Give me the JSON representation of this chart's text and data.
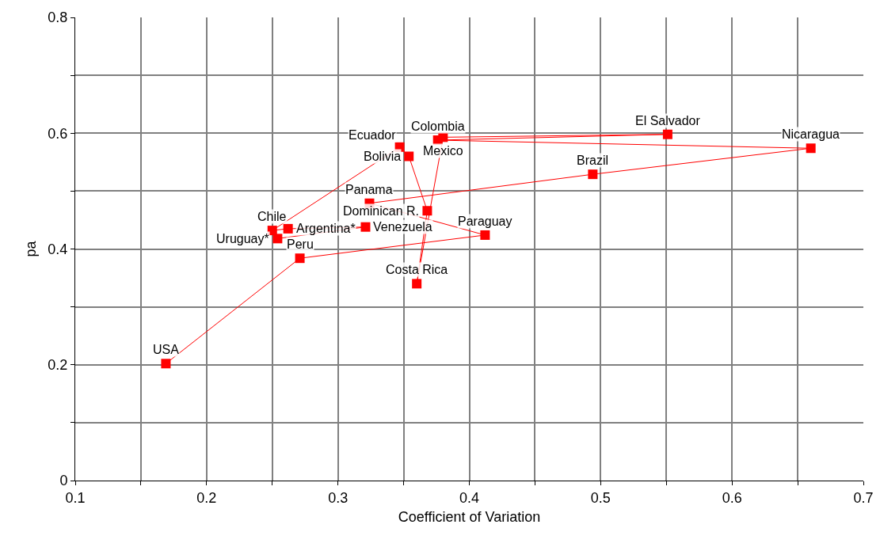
{
  "chart_data": {
    "type": "line",
    "xlabel": "Coefficient of Variation",
    "ylabel": "pa",
    "x": [
      0.169,
      0.271,
      0.412,
      0.324,
      0.494,
      0.66,
      0.376,
      0.551,
      0.38,
      0.36,
      0.368,
      0.354,
      0.347,
      0.25,
      0.262,
      0.321,
      0.254
    ],
    "series": [
      {
        "color": "#ff0000",
        "values": [
          0.202,
          0.384,
          0.424,
          0.479,
          0.529,
          0.574,
          0.588,
          0.598,
          0.593,
          0.34,
          0.466,
          0.56,
          0.576,
          0.432,
          0.435,
          0.438,
          0.418
        ]
      }
    ],
    "marker": "square",
    "line_style": "solid",
    "xlim": [
      0.1,
      0.7
    ],
    "ylim": [
      0,
      0.8
    ],
    "xticks": [
      0.1,
      {
        "value": 0.15,
        "label": null
      },
      0.2,
      {
        "value": 0.25,
        "label": null
      },
      0.3,
      {
        "value": 0.35,
        "label": null
      },
      0.4,
      {
        "value": 0.45,
        "label": null
      },
      0.5,
      {
        "value": 0.55,
        "label": null
      },
      0.6,
      {
        "value": 0.65,
        "label": null
      },
      0.7
    ],
    "yticks": [
      0,
      {
        "value": 0.1,
        "label": null
      },
      0.2,
      {
        "value": 0.3,
        "label": null
      },
      0.4,
      {
        "value": 0.5,
        "label": null
      },
      0.6,
      {
        "value": 0.7,
        "label": null
      },
      0.8
    ],
    "grid": true,
    "annotations": [
      {
        "text": "USA",
        "x": 0.169,
        "y": 0.202
      },
      {
        "text": "Peru",
        "x": 0.271,
        "y": 0.384
      },
      {
        "text": "Paraguay",
        "x": 0.412,
        "y": 0.424
      },
      {
        "text": "Panama",
        "x": 0.324,
        "y": 0.479
      },
      {
        "text": "Brazil",
        "x": 0.494,
        "y": 0.529
      },
      {
        "text": "Nicaragua",
        "x": 0.66,
        "y": 0.574
      },
      {
        "text": "Colombia",
        "x": 0.376,
        "y": 0.588
      },
      {
        "text": "El Salvador",
        "x": 0.551,
        "y": 0.598
      },
      {
        "text": "Mexico",
        "x": 0.38,
        "y": 0.593
      },
      {
        "text": "Costa Rica",
        "x": 0.36,
        "y": 0.34
      },
      {
        "text": "Dominican R.",
        "x": 0.368,
        "y": 0.466
      },
      {
        "text": "Bolivia",
        "x": 0.354,
        "y": 0.56
      },
      {
        "text": "Ecuador",
        "x": 0.347,
        "y": 0.576
      },
      {
        "text": "Chile",
        "x": 0.25,
        "y": 0.432
      },
      {
        "text": "Argentina*",
        "x": 0.262,
        "y": 0.435
      },
      {
        "text": "Venezuela",
        "x": 0.321,
        "y": 0.438
      },
      {
        "text": "Uruguay*",
        "x": 0.254,
        "y": 0.418
      }
    ]
  }
}
